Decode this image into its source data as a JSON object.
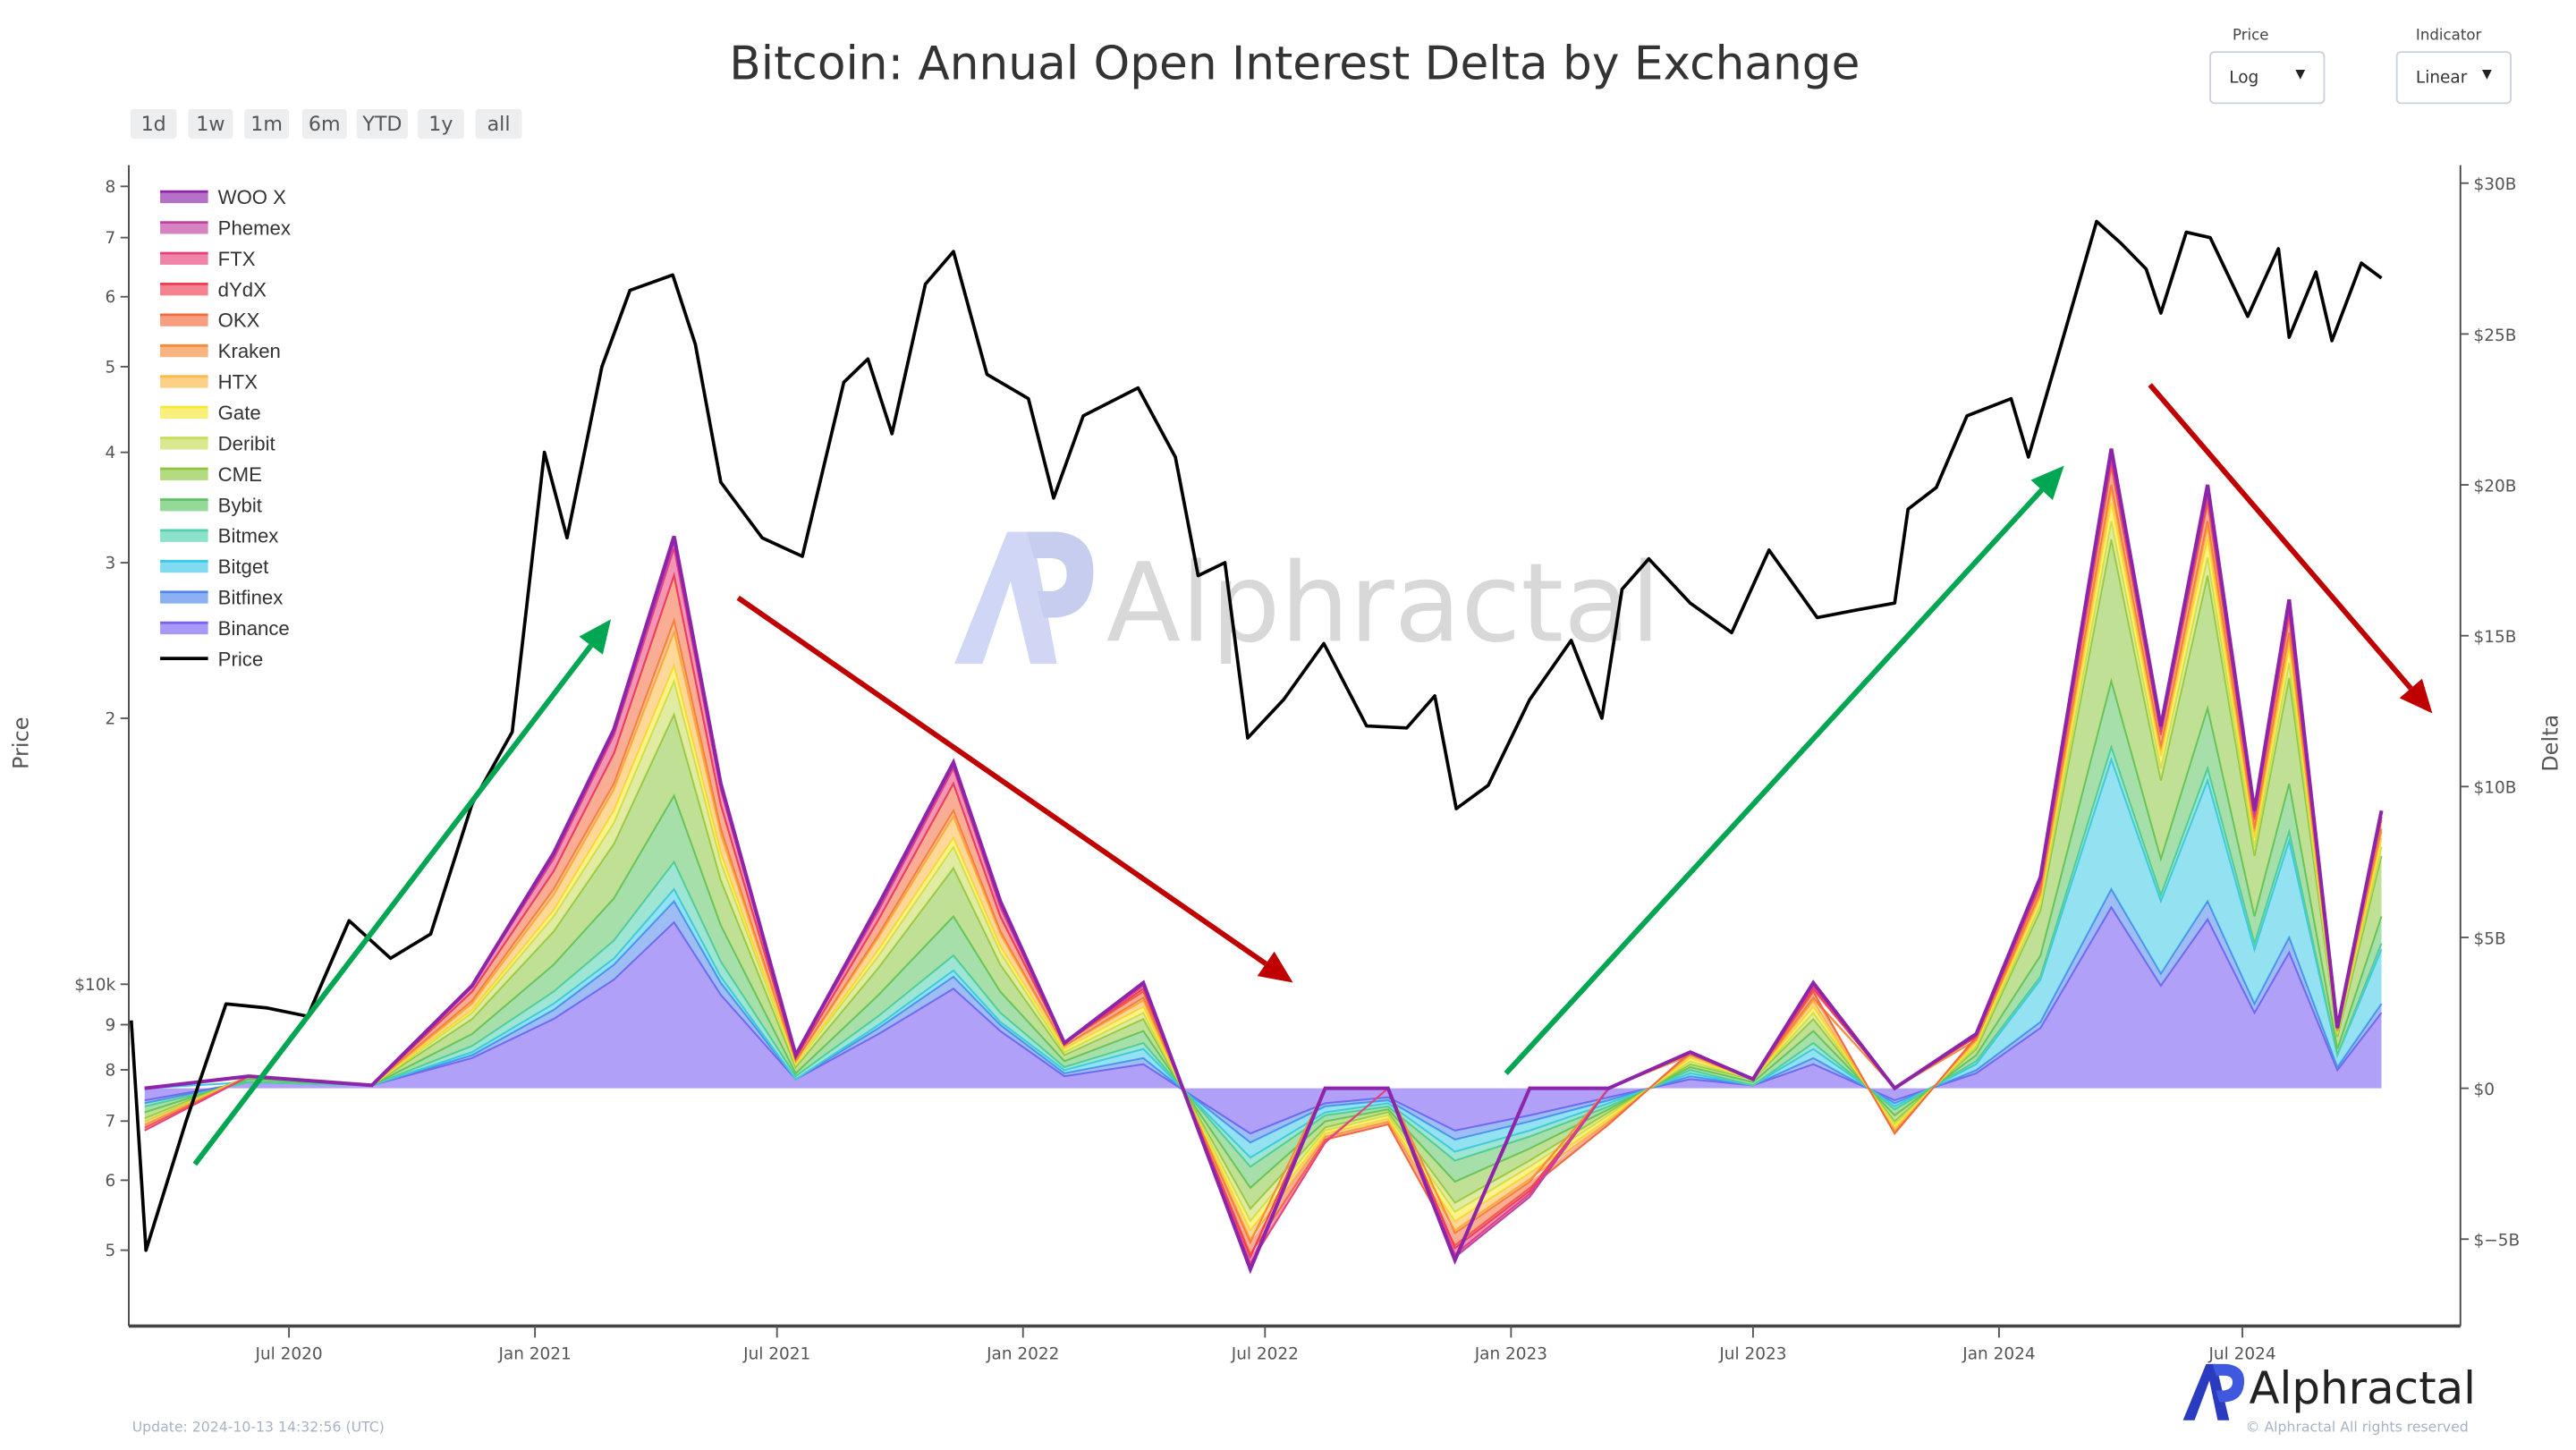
{
  "header": {
    "title": "Bitcoin: Annual Open Interest Delta by Exchange"
  },
  "range_buttons": [
    "1d",
    "1w",
    "1m",
    "6m",
    "YTD",
    "1y",
    "all"
  ],
  "controls": {
    "price_scale": {
      "label": "Price",
      "value": "Log"
    },
    "indicator_scale": {
      "label": "Indicator",
      "value": "Linear"
    }
  },
  "footer": {
    "update": "Update: 2024-10-13 14:32:56 (UTC)",
    "brand": "Alphractal",
    "copyright": "© Alphractal All rights reserved"
  },
  "watermark": "Alphractal",
  "chart_data": {
    "type": "area",
    "title": "Bitcoin: Annual Open Interest Delta by Exchange",
    "stacked": true,
    "legend_placement": "top-left",
    "grid": false,
    "y_left": {
      "label": "Price",
      "scale": "log",
      "range": [
        4500,
        85000
      ],
      "ticks": [
        {
          "v": 80000,
          "t": "8"
        },
        {
          "v": 70000,
          "t": "7"
        },
        {
          "v": 60000,
          "t": "6"
        },
        {
          "v": 50000,
          "t": "5"
        },
        {
          "v": 40000,
          "t": "4"
        },
        {
          "v": 30000,
          "t": "3"
        },
        {
          "v": 20000,
          "t": "2"
        },
        {
          "v": 10000,
          "t": "$10k"
        },
        {
          "v": 9000,
          "t": "9"
        },
        {
          "v": 8000,
          "t": "8"
        },
        {
          "v": 7000,
          "t": "7"
        },
        {
          "v": 6000,
          "t": "6"
        },
        {
          "v": 5000,
          "t": "5"
        }
      ]
    },
    "y_right": {
      "label": "Delta",
      "scale": "linear",
      "unit": "USD billions",
      "range": [
        -7.9,
        30.6
      ],
      "ticks": [
        {
          "v": 30,
          "t": "$30B"
        },
        {
          "v": 25,
          "t": "$25B"
        },
        {
          "v": 20,
          "t": "$20B"
        },
        {
          "v": 15,
          "t": "$15B"
        },
        {
          "v": 10,
          "t": "$10B"
        },
        {
          "v": 5,
          "t": "$5B"
        },
        {
          "v": 0,
          "t": "$0"
        },
        {
          "v": -5,
          "t": "$−5B"
        }
      ]
    },
    "x_axis": {
      "range": [
        "2020-03-04",
        "2024-12-10"
      ],
      "ticks": [
        {
          "d": "2020-07-01",
          "t": "Jul 2020"
        },
        {
          "d": "2021-01-01",
          "t": "Jan 2021"
        },
        {
          "d": "2021-07-01",
          "t": "Jul 2021"
        },
        {
          "d": "2022-01-01",
          "t": "Jan 2022"
        },
        {
          "d": "2022-07-01",
          "t": "Jul 2022"
        },
        {
          "d": "2023-01-01",
          "t": "Jan 2023"
        },
        {
          "d": "2023-07-01",
          "t": "Jul 2023"
        },
        {
          "d": "2024-01-01",
          "t": "Jan 2024"
        },
        {
          "d": "2024-07-01",
          "t": "Jul 2024"
        }
      ]
    },
    "price": {
      "name": "Price",
      "color": "#000000",
      "dates": [
        "2020-03-05",
        "2020-03-16",
        "2020-04-15",
        "2020-05-15",
        "2020-06-15",
        "2020-07-15",
        "2020-08-15",
        "2020-09-15",
        "2020-10-15",
        "2020-11-15",
        "2020-12-15",
        "2021-01-08",
        "2021-01-25",
        "2021-02-20",
        "2021-03-13",
        "2021-04-14",
        "2021-05-01",
        "2021-05-20",
        "2021-06-20",
        "2021-07-20",
        "2021-08-20",
        "2021-09-07",
        "2021-09-25",
        "2021-10-20",
        "2021-11-10",
        "2021-12-05",
        "2022-01-05",
        "2022-01-24",
        "2022-02-15",
        "2022-03-28",
        "2022-04-25",
        "2022-05-12",
        "2022-06-01",
        "2022-06-18",
        "2022-07-15",
        "2022-08-14",
        "2022-09-15",
        "2022-10-15",
        "2022-11-05",
        "2022-11-21",
        "2022-12-15",
        "2023-01-15",
        "2023-02-15",
        "2023-03-10",
        "2023-03-25",
        "2023-04-14",
        "2023-05-15",
        "2023-06-15",
        "2023-07-13",
        "2023-08-18",
        "2023-09-15",
        "2023-10-15",
        "2023-10-25",
        "2023-11-15",
        "2023-12-08",
        "2024-01-10",
        "2024-01-23",
        "2024-02-15",
        "2024-03-14",
        "2024-04-01",
        "2024-04-20",
        "2024-05-01",
        "2024-05-20",
        "2024-06-07",
        "2024-07-05",
        "2024-07-28",
        "2024-08-05",
        "2024-08-25",
        "2024-09-06",
        "2024-09-28",
        "2024-10-13"
      ],
      "values": [
        9100,
        5000,
        7000,
        9500,
        9400,
        9200,
        11800,
        10700,
        11400,
        16000,
        19300,
        40000,
        32000,
        50000,
        61000,
        63500,
        53000,
        37000,
        32000,
        30500,
        48000,
        51000,
        42000,
        62000,
        67500,
        49000,
        46000,
        35500,
        44000,
        47300,
        39500,
        29000,
        30000,
        19000,
        21000,
        24300,
        19600,
        19500,
        21200,
        15800,
        16800,
        21000,
        24500,
        20000,
        28000,
        30300,
        27000,
        25000,
        31000,
        26000,
        26500,
        27000,
        34500,
        36500,
        44000,
        46000,
        39500,
        52000,
        73000,
        69000,
        64500,
        57500,
        71000,
        70000,
        57000,
        68000,
        54000,
        64000,
        53500,
        65500,
        63000
      ]
    },
    "dates": [
      "2020-03-15",
      "2020-06-01",
      "2020-09-01",
      "2020-11-15",
      "2021-01-15",
      "2021-03-01",
      "2021-04-15",
      "2021-05-20",
      "2021-07-15",
      "2021-09-15",
      "2021-11-10",
      "2021-12-15",
      "2022-02-01",
      "2022-04-01",
      "2022-06-20",
      "2022-08-15",
      "2022-10-01",
      "2022-11-20",
      "2023-01-15",
      "2023-03-15",
      "2023-05-15",
      "2023-07-01",
      "2023-08-15",
      "2023-10-15",
      "2023-12-15",
      "2024-02-01",
      "2024-03-25",
      "2024-05-01",
      "2024-06-05",
      "2024-07-10",
      "2024-08-05",
      "2024-09-10",
      "2024-10-13"
    ],
    "series": [
      {
        "name": "WOO X",
        "color": "#8e24aa",
        "values": [
          0,
          0,
          0,
          0,
          0.1,
          0.1,
          0.2,
          0.1,
          0,
          0.1,
          0.1,
          0.1,
          0,
          0,
          -0.1,
          0,
          0,
          -0.1,
          0,
          0,
          0,
          0,
          0,
          0,
          0,
          0.1,
          0.2,
          0.1,
          0.2,
          0.1,
          0.2,
          0,
          0.1
        ]
      },
      {
        "name": "Phemex",
        "color": "#c2409f",
        "values": [
          0,
          0,
          0,
          0,
          0.1,
          0.1,
          0.2,
          0.1,
          0,
          0.1,
          0.1,
          0.1,
          0,
          0.1,
          -0.1,
          0,
          0,
          -0.1,
          -0.1,
          0,
          0,
          0,
          0.1,
          0,
          0,
          0.1,
          0.2,
          0.1,
          0.2,
          0.1,
          0.2,
          0,
          0.1
        ]
      },
      {
        "name": "FTX",
        "color": "#e8407a",
        "values": [
          -0.1,
          0,
          0,
          0.2,
          0.4,
          0.6,
          0.9,
          0.5,
          0.1,
          0.3,
          0.5,
          0.3,
          0,
          0.1,
          -0.2,
          -0.1,
          0,
          -0.2,
          -0.1,
          0,
          0,
          0,
          0.1,
          0,
          0.1,
          0,
          0,
          0,
          0,
          0,
          0,
          0,
          0
        ]
      },
      {
        "name": "dYdX",
        "color": "#ef3f55",
        "values": [
          0,
          0,
          0,
          0,
          0,
          0,
          0,
          0,
          0,
          0,
          0,
          0,
          0,
          0.1,
          -0.1,
          0,
          0,
          -0.1,
          -0.1,
          0,
          0,
          0,
          0.1,
          0,
          0,
          0.1,
          0.2,
          0.1,
          0.2,
          0.1,
          0.2,
          0,
          0.1
        ]
      },
      {
        "name": "OKX",
        "color": "#f26a3c",
        "values": [
          -0.1,
          0,
          0,
          0.3,
          0.6,
          1.0,
          1.5,
          0.8,
          0.1,
          0.5,
          0.9,
          0.5,
          0.1,
          0.2,
          -0.4,
          -0.1,
          -0.1,
          -0.4,
          -0.2,
          -0.1,
          0.1,
          0,
          0.2,
          -0.1,
          0.1,
          0.2,
          0.6,
          0.4,
          0.6,
          0.3,
          0.5,
          0.1,
          0.3
        ]
      },
      {
        "name": "Kraken",
        "color": "#f78c3a",
        "values": [
          0,
          0,
          0,
          0.1,
          0.2,
          0.2,
          0.4,
          0.2,
          0,
          0.1,
          0.2,
          0.1,
          0,
          0.1,
          -0.1,
          0,
          0,
          -0.1,
          -0.1,
          0,
          0,
          0,
          0.1,
          0,
          0,
          0.1,
          0.2,
          0.1,
          0.2,
          0.1,
          0.2,
          0,
          0.1
        ]
      },
      {
        "name": "HTX",
        "color": "#fbb845",
        "values": [
          -0.1,
          0,
          0,
          0.2,
          0.5,
          0.7,
          1.1,
          0.6,
          0.1,
          0.4,
          0.7,
          0.4,
          0.1,
          0.2,
          -0.3,
          -0.1,
          -0.1,
          -0.3,
          -0.2,
          -0.1,
          0.1,
          0,
          0.2,
          -0.1,
          0.1,
          0.1,
          0.4,
          0.2,
          0.4,
          0.2,
          0.3,
          0,
          0.2
        ]
      },
      {
        "name": "Gate",
        "color": "#f5e832",
        "values": [
          0,
          0,
          0,
          0.1,
          0.2,
          0.4,
          0.5,
          0.3,
          0,
          0.2,
          0.3,
          0.2,
          0.1,
          0.2,
          -0.3,
          -0.1,
          -0.1,
          -0.3,
          -0.2,
          -0.1,
          0.1,
          0,
          0.2,
          -0.1,
          0.1,
          0.2,
          0.6,
          0.4,
          0.6,
          0.3,
          0.5,
          0.1,
          0.3
        ]
      },
      {
        "name": "Deribit",
        "color": "#c8dc55",
        "values": [
          -0.1,
          0,
          0,
          0.2,
          0.5,
          0.7,
          1.1,
          0.6,
          0.1,
          0.4,
          0.7,
          0.4,
          0.1,
          0.2,
          -0.4,
          -0.1,
          -0.1,
          -0.3,
          -0.2,
          -0.1,
          0.1,
          0,
          0.2,
          -0.1,
          0.1,
          0.2,
          0.6,
          0.4,
          0.6,
          0.3,
          0.5,
          0.1,
          0.3
        ]
      },
      {
        "name": "CME",
        "color": "#8cc63f",
        "values": [
          -0.2,
          0.1,
          0,
          0.5,
          1.1,
          1.8,
          2.7,
          1.5,
          0.2,
          0.9,
          1.6,
          0.9,
          0.2,
          0.4,
          -0.7,
          -0.2,
          -0.1,
          -0.7,
          -0.4,
          -0.1,
          0.1,
          0.1,
          0.4,
          -0.2,
          0.2,
          1.5,
          4.7,
          2.6,
          4.4,
          2.0,
          3.5,
          0.4,
          2.0
        ]
      },
      {
        "name": "Bybit",
        "color": "#5cc463",
        "values": [
          -0.2,
          0.1,
          0,
          0.4,
          0.9,
          1.4,
          2.2,
          1.2,
          0.1,
          0.7,
          1.3,
          0.7,
          0.2,
          0.4,
          -0.7,
          -0.2,
          -0.1,
          -0.7,
          -0.4,
          -0.1,
          0.1,
          0.1,
          0.4,
          -0.2,
          0.2,
          0.7,
          2.2,
          1.2,
          2.0,
          0.9,
          1.6,
          0.2,
          0.9
        ]
      },
      {
        "name": "Bitmex",
        "color": "#4fd1ae",
        "values": [
          -0.1,
          0,
          0,
          0.2,
          0.4,
          0.6,
          0.9,
          0.5,
          0.1,
          0.3,
          0.5,
          0.3,
          0.1,
          0.2,
          -0.3,
          -0.1,
          -0.1,
          -0.3,
          -0.2,
          -0.1,
          0.1,
          0,
          0.2,
          -0.1,
          0.1,
          0.1,
          0.4,
          0.2,
          0.4,
          0.2,
          0.3,
          0,
          0.2
        ]
      },
      {
        "name": "Bitget",
        "color": "#3cc8e8",
        "values": [
          0,
          0,
          0,
          0.1,
          0.2,
          0.2,
          0.4,
          0.2,
          0,
          0.1,
          0.2,
          0.1,
          0.1,
          0.3,
          -0.5,
          -0.2,
          -0.1,
          -0.4,
          -0.3,
          -0.1,
          0.1,
          0,
          0.3,
          -0.1,
          0.2,
          1.4,
          4.3,
          2.4,
          4.0,
          1.8,
          3.2,
          0.4,
          1.8
        ]
      },
      {
        "name": "Bitfinex",
        "color": "#4f86ec",
        "values": [
          -0.1,
          0,
          0,
          0.1,
          0.3,
          0.5,
          0.7,
          0.4,
          0,
          0.2,
          0.4,
          0.2,
          0.1,
          0.2,
          -0.3,
          -0.1,
          -0.1,
          -0.3,
          -0.2,
          -0.1,
          0.1,
          0,
          0.2,
          -0.1,
          0.1,
          0.2,
          0.6,
          0.4,
          0.6,
          0.3,
          0.5,
          0.1,
          0.3
        ]
      },
      {
        "name": "Binance",
        "color": "#7b61f2",
        "values": [
          -0.4,
          0.2,
          0.1,
          1.0,
          2.3,
          3.6,
          5.5,
          3.1,
          0.3,
          1.8,
          3.3,
          1.9,
          0.4,
          0.8,
          -1.5,
          -0.5,
          -0.3,
          -1.4,
          -0.9,
          -0.3,
          0.3,
          0.1,
          0.8,
          -0.4,
          0.5,
          2.0,
          6.0,
          3.4,
          5.6,
          2.5,
          4.5,
          0.6,
          2.5
        ]
      }
    ],
    "annotations": [
      {
        "type": "arrow",
        "color": "#00a651",
        "from": "2020-05-01",
        "to": "2021-03-15",
        "direction": "up"
      },
      {
        "type": "arrow",
        "color": "#c00000",
        "from": "2021-05-20",
        "to": "2022-07-15",
        "direction": "down"
      },
      {
        "type": "arrow",
        "color": "#00a651",
        "from": "2022-12-15",
        "to": "2024-03-01",
        "direction": "up"
      },
      {
        "type": "arrow",
        "color": "#c00000",
        "from": "2024-04-20",
        "to": "2024-12-01",
        "direction": "down"
      }
    ]
  }
}
